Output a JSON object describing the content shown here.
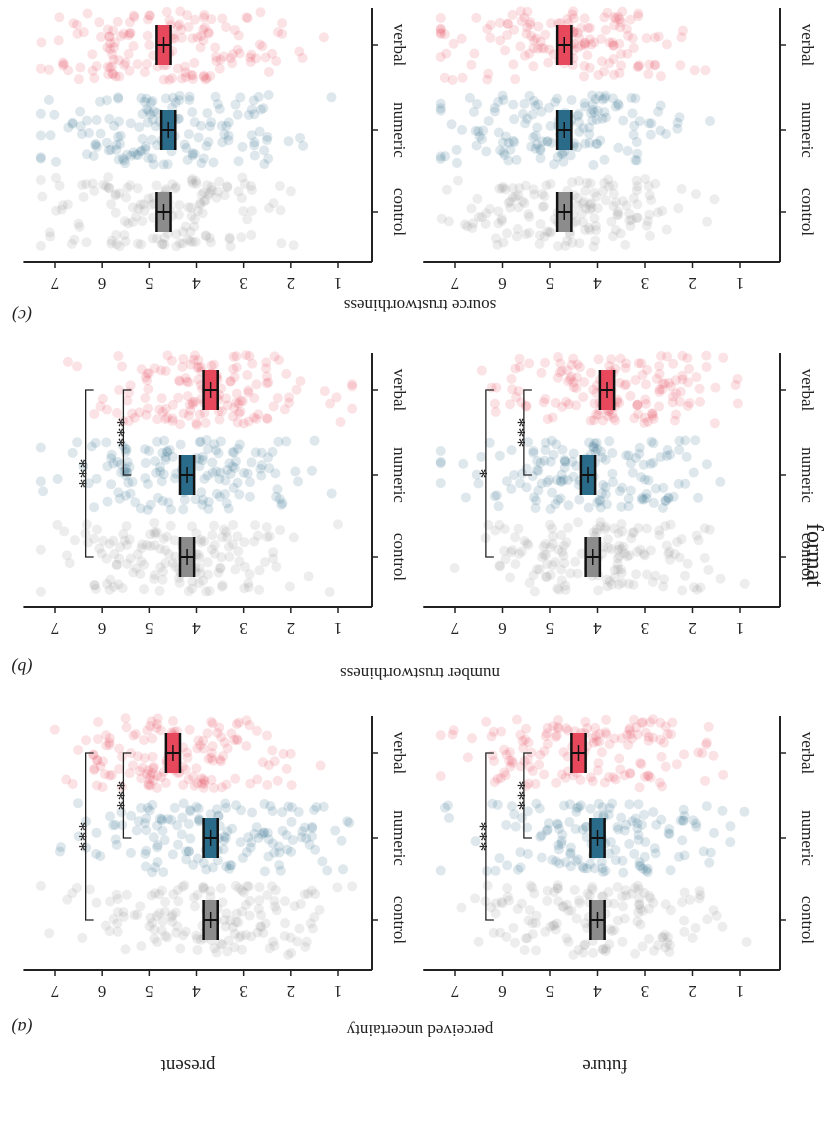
{
  "colors": {
    "control": "#8c8c8c",
    "numeric": "#2a6b8a",
    "verbal": "#e8485c",
    "axis": "#222222"
  },
  "labels": {
    "row_present": "present",
    "row_future": "future",
    "x_title": "format",
    "panel_a": "(a)",
    "panel_b": "(b)",
    "panel_c": "(c)",
    "ylabel_a": "perceived uncertainty",
    "ylabel_b": "number trustworthiness",
    "ylabel_c": "source trustworthiness"
  },
  "chart_data": [
    {
      "type": "scatter",
      "panel": "(a)",
      "row": "present",
      "ylabel": "perceived uncertainty",
      "categories": [
        "control",
        "numeric",
        "verbal"
      ],
      "ylim": [
        0.5,
        7.5
      ],
      "yticks": [
        1,
        2,
        3,
        4,
        5,
        6,
        7
      ],
      "means": [
        3.7,
        3.7,
        4.5
      ],
      "ci": [
        [
          3.55,
          3.85
        ],
        [
          3.55,
          3.85
        ],
        [
          4.35,
          4.65
        ]
      ],
      "brackets": [
        {
          "from": "control",
          "to": "verbal",
          "label": "***"
        },
        {
          "from": "numeric",
          "to": "verbal",
          "label": "***"
        }
      ]
    },
    {
      "type": "scatter",
      "panel": "(a)",
      "row": "future",
      "ylabel": "perceived uncertainty",
      "categories": [
        "control",
        "numeric",
        "verbal"
      ],
      "ylim": [
        0.5,
        7.5
      ],
      "yticks": [
        1,
        2,
        3,
        4,
        5,
        6,
        7
      ],
      "means": [
        4.0,
        4.0,
        4.4
      ],
      "ci": [
        [
          3.85,
          4.15
        ],
        [
          3.85,
          4.15
        ],
        [
          4.25,
          4.55
        ]
      ],
      "brackets": [
        {
          "from": "control",
          "to": "verbal",
          "label": "***"
        },
        {
          "from": "numeric",
          "to": "verbal",
          "label": "***"
        }
      ]
    },
    {
      "type": "scatter",
      "panel": "(b)",
      "row": "present",
      "ylabel": "number trustworthiness",
      "categories": [
        "control",
        "numeric",
        "verbal"
      ],
      "ylim": [
        0.5,
        7.5
      ],
      "yticks": [
        1,
        2,
        3,
        4,
        5,
        6,
        7
      ],
      "means": [
        4.2,
        4.2,
        3.7
      ],
      "ci": [
        [
          4.05,
          4.35
        ],
        [
          4.05,
          4.35
        ],
        [
          3.55,
          3.85
        ]
      ],
      "brackets": [
        {
          "from": "control",
          "to": "verbal",
          "label": "***"
        },
        {
          "from": "numeric",
          "to": "verbal",
          "label": "***"
        }
      ]
    },
    {
      "type": "scatter",
      "panel": "(b)",
      "row": "future",
      "ylabel": "number trustworthiness",
      "categories": [
        "control",
        "numeric",
        "verbal"
      ],
      "ylim": [
        0.5,
        7.5
      ],
      "yticks": [
        1,
        2,
        3,
        4,
        5,
        6,
        7
      ],
      "means": [
        4.1,
        4.2,
        3.8
      ],
      "ci": [
        [
          3.95,
          4.25
        ],
        [
          4.05,
          4.35
        ],
        [
          3.65,
          3.95
        ]
      ],
      "brackets": [
        {
          "from": "control",
          "to": "verbal",
          "label": "*"
        },
        {
          "from": "numeric",
          "to": "verbal",
          "label": "***"
        }
      ]
    },
    {
      "type": "scatter",
      "panel": "(c)",
      "row": "present",
      "ylabel": "source trustworthiness",
      "categories": [
        "control",
        "numeric",
        "verbal"
      ],
      "ylim": [
        0.5,
        7.5
      ],
      "yticks": [
        1,
        2,
        3,
        4,
        5,
        6,
        7
      ],
      "means": [
        4.7,
        4.6,
        4.7
      ],
      "ci": [
        [
          4.55,
          4.85
        ],
        [
          4.45,
          4.75
        ],
        [
          4.55,
          4.85
        ]
      ],
      "brackets": []
    },
    {
      "type": "scatter",
      "panel": "(c)",
      "row": "future",
      "ylabel": "source trustworthiness",
      "categories": [
        "control",
        "numeric",
        "verbal"
      ],
      "ylim": [
        0.5,
        7.5
      ],
      "yticks": [
        1,
        2,
        3,
        4,
        5,
        6,
        7
      ],
      "means": [
        4.7,
        4.7,
        4.7
      ],
      "ci": [
        [
          4.55,
          4.85
        ],
        [
          4.55,
          4.85
        ],
        [
          4.55,
          4.85
        ]
      ],
      "brackets": []
    }
  ]
}
